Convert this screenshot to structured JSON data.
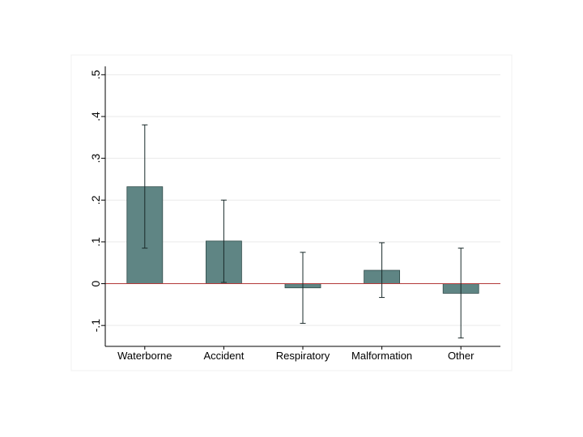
{
  "chart_data": {
    "type": "bar",
    "title": "",
    "xlabel": "",
    "ylabel": "",
    "categories": [
      "Waterborne",
      "Accident",
      "Respiratory",
      "Malformation",
      "Other"
    ],
    "values": [
      0.232,
      0.102,
      -0.01,
      0.032,
      -0.023
    ],
    "error_low": [
      0.085,
      0.003,
      -0.095,
      -0.033,
      -0.13
    ],
    "error_high": [
      0.38,
      0.2,
      0.075,
      0.098,
      0.085
    ],
    "ylim": [
      -0.15,
      0.52
    ],
    "yticks": [
      -0.1,
      0,
      0.1,
      0.2,
      0.3,
      0.4,
      0.5
    ],
    "ytick_labels": [
      "-.1",
      "0",
      ".1",
      ".2",
      ".3",
      ".4",
      ".5"
    ],
    "grid": true,
    "reference_line": 0,
    "colors": {
      "bar_fill": "#5f8584",
      "bar_stroke": "#2f4a49",
      "reference_line": "#b33a3a",
      "grid": "#eaeaea",
      "axis": "#000000"
    }
  }
}
